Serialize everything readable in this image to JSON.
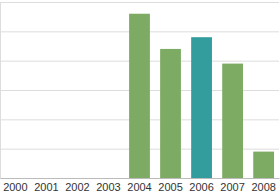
{
  "chart_data": {
    "type": "bar",
    "categories": [
      "2000",
      "2001",
      "2002",
      "2003",
      "2004",
      "2005",
      "2006",
      "2007",
      "2008"
    ],
    "values": [
      null,
      null,
      null,
      null,
      5.6,
      4.4,
      4.8,
      3.9,
      0.9
    ],
    "colors": [
      "#7dab64",
      "#7dab64",
      "#7dab64",
      "#7dab64",
      "#7dab64",
      "#7dab64",
      "#339c9c",
      "#7dab64",
      "#7dab64"
    ],
    "ylim": [
      0,
      6
    ],
    "yticks": [
      0,
      1,
      2,
      3,
      4,
      5,
      6
    ],
    "grid": true,
    "tick_labels": "x"
  }
}
